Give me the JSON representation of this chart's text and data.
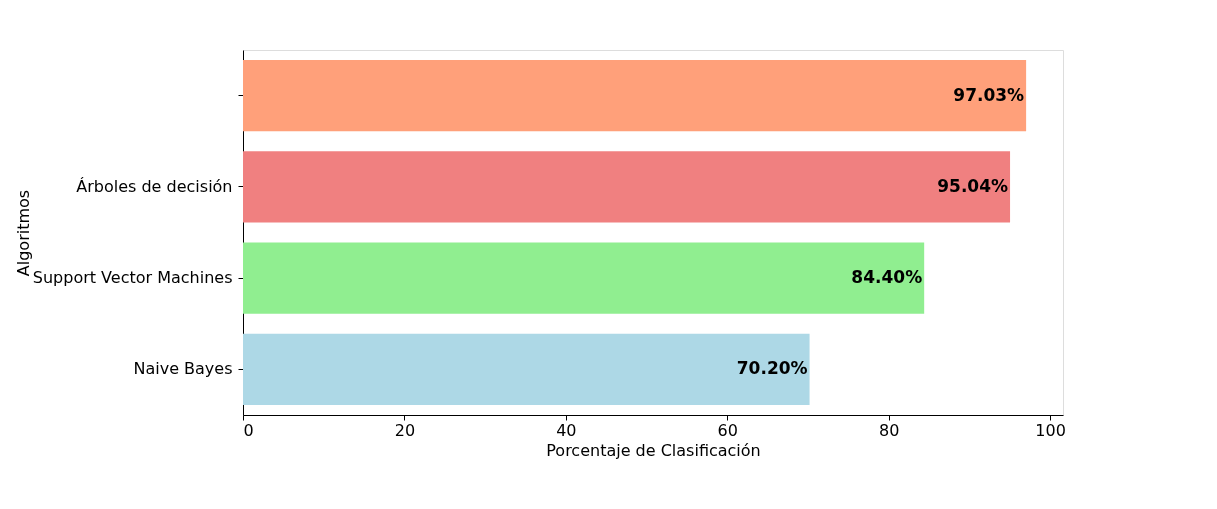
{
  "chart_data": {
    "type": "bar",
    "orientation": "horizontal",
    "xlabel": "Porcentaje de Clasificación",
    "ylabel": "Algoritmos",
    "categories": [
      null,
      "Árboles de decisión",
      "Support Vector Machines",
      "Naive Bayes"
    ],
    "values": [
      97.03,
      95.04,
      84.4,
      70.2
    ],
    "colors": [
      "#ffa07a",
      "#f08080",
      "#90ee90",
      "#add8e6"
    ],
    "value_labels": [
      "97.03%",
      "95.04%",
      "84.40%",
      "70.20%"
    ],
    "xlim": [
      0,
      101.6
    ],
    "xticks": [
      0,
      20,
      40,
      60,
      80,
      100
    ],
    "grid": false
  }
}
